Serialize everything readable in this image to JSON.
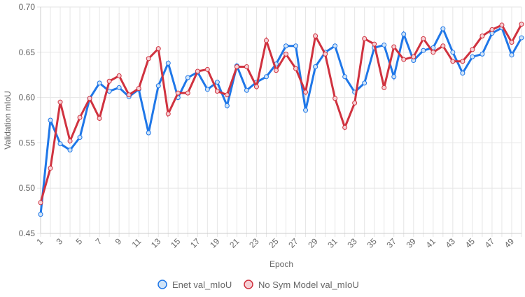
{
  "chart_data": {
    "type": "line",
    "xlabel": "Epoch",
    "ylabel": "Validation mIoU",
    "ylim": [
      0.45,
      0.7
    ],
    "y_ticks": [
      "0.45",
      "0.50",
      "0.55",
      "0.60",
      "0.65",
      "0.70"
    ],
    "x_tick_labels": [
      "1",
      "3",
      "5",
      "7",
      "9",
      "11",
      "13",
      "15",
      "17",
      "19",
      "21",
      "23",
      "25",
      "27",
      "29",
      "31",
      "33",
      "35",
      "37",
      "39",
      "41",
      "43",
      "45",
      "47",
      "49"
    ],
    "x": [
      1,
      2,
      3,
      4,
      5,
      6,
      7,
      8,
      9,
      10,
      11,
      12,
      13,
      14,
      15,
      16,
      17,
      18,
      19,
      20,
      21,
      22,
      23,
      24,
      25,
      26,
      27,
      28,
      29,
      30,
      31,
      32,
      33,
      34,
      35,
      36,
      37,
      38,
      39,
      40,
      41,
      42,
      43,
      44,
      45,
      46,
      47,
      48,
      49,
      50
    ],
    "grid": true,
    "legend_position": "bottom",
    "series": [
      {
        "name": "Enet val_mIoU",
        "color": "#1f77e8",
        "fill": "#cfe3f7",
        "values": [
          0.471,
          0.575,
          0.549,
          0.542,
          0.556,
          0.599,
          0.616,
          0.607,
          0.611,
          0.601,
          0.609,
          0.561,
          0.613,
          0.638,
          0.6,
          0.622,
          0.628,
          0.609,
          0.617,
          0.591,
          0.635,
          0.608,
          0.617,
          0.623,
          0.637,
          0.657,
          0.657,
          0.586,
          0.634,
          0.65,
          0.657,
          0.623,
          0.606,
          0.616,
          0.655,
          0.658,
          0.623,
          0.67,
          0.641,
          0.652,
          0.655,
          0.676,
          0.65,
          0.627,
          0.645,
          0.648,
          0.671,
          0.677,
          0.647,
          0.666
        ]
      },
      {
        "name": "No Sym Model val_mIoU",
        "color": "#d0323f",
        "fill": "#f5cfd4",
        "values": [
          0.484,
          0.522,
          0.595,
          0.552,
          0.578,
          0.599,
          0.577,
          0.618,
          0.624,
          0.603,
          0.61,
          0.643,
          0.654,
          0.582,
          0.605,
          0.605,
          0.629,
          0.631,
          0.607,
          0.603,
          0.634,
          0.634,
          0.612,
          0.663,
          0.63,
          0.648,
          0.632,
          0.606,
          0.668,
          0.648,
          0.599,
          0.567,
          0.594,
          0.665,
          0.659,
          0.611,
          0.656,
          0.642,
          0.645,
          0.665,
          0.65,
          0.657,
          0.64,
          0.64,
          0.653,
          0.668,
          0.675,
          0.68,
          0.661,
          0.681
        ]
      }
    ]
  }
}
